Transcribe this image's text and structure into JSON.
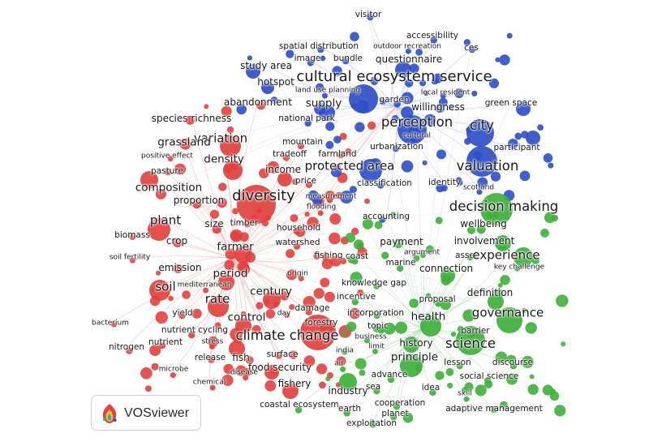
{
  "palette": {
    "red": "#e0413f",
    "blue": "#2e4fc7",
    "green": "#3faf3c",
    "link_red": "#f0a3a3",
    "link_blue": "#a9b5e6",
    "link_green": "#a6d8a2"
  },
  "logo": {
    "text": "VOSviewer",
    "icon": "vosviewer-logo-icon"
  },
  "clusters": [
    {
      "name": "red-cluster",
      "color": "#e0413f",
      "terms": [
        {
          "term": "abandonment",
          "weight": 8
        },
        {
          "term": "species richness",
          "weight": 8
        },
        {
          "term": "variation",
          "weight": 10
        },
        {
          "term": "grassland",
          "weight": 9
        },
        {
          "term": "density",
          "weight": 9
        },
        {
          "term": "mountain",
          "weight": 7
        },
        {
          "term": "tradeoff",
          "weight": 7
        },
        {
          "term": "farmland",
          "weight": 7
        },
        {
          "term": "positive effect",
          "weight": 6
        },
        {
          "term": "pasture",
          "weight": 7
        },
        {
          "term": "income",
          "weight": 8
        },
        {
          "term": "price",
          "weight": 7
        },
        {
          "term": "composition",
          "weight": 9
        },
        {
          "term": "diversity",
          "weight": 12
        },
        {
          "term": "proportion",
          "weight": 8
        },
        {
          "term": "measurement",
          "weight": 6
        },
        {
          "term": "flooding",
          "weight": 6
        },
        {
          "term": "plant",
          "weight": 10
        },
        {
          "term": "size",
          "weight": 8
        },
        {
          "term": "timber",
          "weight": 7
        },
        {
          "term": "household",
          "weight": 7
        },
        {
          "term": "biomass",
          "weight": 7
        },
        {
          "term": "crop",
          "weight": 8
        },
        {
          "term": "farmer",
          "weight": 9
        },
        {
          "term": "watershed",
          "weight": 7
        },
        {
          "term": "soil fertility",
          "weight": 6
        },
        {
          "term": "fishing",
          "weight": 7
        },
        {
          "term": "emission",
          "weight": 8
        },
        {
          "term": "period",
          "weight": 9
        },
        {
          "term": "origin",
          "weight": 6
        },
        {
          "term": "soil",
          "weight": 10
        },
        {
          "term": "mediterranean",
          "weight": 6
        },
        {
          "term": "century",
          "weight": 9
        },
        {
          "term": "rate",
          "weight": 10
        },
        {
          "term": "damage",
          "weight": 7
        },
        {
          "term": "day",
          "weight": 6
        },
        {
          "term": "yield",
          "weight": 7
        },
        {
          "term": "control",
          "weight": 9
        },
        {
          "term": "forestry",
          "weight": 7
        },
        {
          "term": "bacterium",
          "weight": 6
        },
        {
          "term": "nutrient cycling",
          "weight": 7
        },
        {
          "term": "climate change",
          "weight": 11
        },
        {
          "term": "nitrogen",
          "weight": 7
        },
        {
          "term": "nutrient",
          "weight": 7
        },
        {
          "term": "stress",
          "weight": 6
        },
        {
          "term": "release",
          "weight": 7
        },
        {
          "term": "fish",
          "weight": 8
        },
        {
          "term": "surface",
          "weight": 7
        },
        {
          "term": "food security",
          "weight": 8
        },
        {
          "term": "microbe",
          "weight": 6
        },
        {
          "term": "disease",
          "weight": 6
        },
        {
          "term": "fishery",
          "weight": 8
        },
        {
          "term": "chemical",
          "weight": 6
        }
      ]
    },
    {
      "name": "blue-cluster",
      "color": "#2e4fc7",
      "terms": [
        {
          "term": "visitor",
          "weight": 7
        },
        {
          "term": "accessibility",
          "weight": 7
        },
        {
          "term": "spatial distribution",
          "weight": 7
        },
        {
          "term": "outdoor recreation",
          "weight": 6
        },
        {
          "term": "ces",
          "weight": 7
        },
        {
          "term": "image",
          "weight": 7
        },
        {
          "term": "bundle",
          "weight": 7
        },
        {
          "term": "questionnaire",
          "weight": 8
        },
        {
          "term": "study area",
          "weight": 8
        },
        {
          "term": "cultural ecosystem service",
          "weight": 12
        },
        {
          "term": "hotspot",
          "weight": 8
        },
        {
          "term": "land use planning",
          "weight": 6
        },
        {
          "term": "local resident",
          "weight": 6
        },
        {
          "term": "garden",
          "weight": 7
        },
        {
          "term": "supply",
          "weight": 9
        },
        {
          "term": "willingness",
          "weight": 8
        },
        {
          "term": "green space",
          "weight": 7
        },
        {
          "term": "city",
          "weight": 11
        },
        {
          "term": "national park",
          "weight": 7
        },
        {
          "term": "perception",
          "weight": 11
        },
        {
          "term": "cultural",
          "weight": 6
        },
        {
          "term": "urbanization",
          "weight": 7
        },
        {
          "term": "participant",
          "weight": 7
        },
        {
          "term": "valuation",
          "weight": 11
        },
        {
          "term": "protected area",
          "weight": 10
        },
        {
          "term": "classification",
          "weight": 7
        },
        {
          "term": "identity",
          "weight": 7
        },
        {
          "term": "scotland",
          "weight": 6
        },
        {
          "term": "accounting",
          "weight": 7
        }
      ]
    },
    {
      "name": "green-cluster",
      "color": "#3faf3c",
      "terms": [
        {
          "term": "decision making",
          "weight": 11
        },
        {
          "term": "wellbeing",
          "weight": 8
        },
        {
          "term": "payment",
          "weight": 8
        },
        {
          "term": "involvement",
          "weight": 8
        },
        {
          "term": "argument",
          "weight": 6
        },
        {
          "term": "asset",
          "weight": 7
        },
        {
          "term": "experience",
          "weight": 10
        },
        {
          "term": "coast",
          "weight": 7
        },
        {
          "term": "marine",
          "weight": 7
        },
        {
          "term": "connection",
          "weight": 8
        },
        {
          "term": "key challenge",
          "weight": 6
        },
        {
          "term": "knowledge gap",
          "weight": 7
        },
        {
          "term": "definition",
          "weight": 8
        },
        {
          "term": "incentive",
          "weight": 7
        },
        {
          "term": "proposal",
          "weight": 7
        },
        {
          "term": "incorporation",
          "weight": 7
        },
        {
          "term": "governance",
          "weight": 10
        },
        {
          "term": "health",
          "weight": 9
        },
        {
          "term": "topic",
          "weight": 7
        },
        {
          "term": "barrier",
          "weight": 7
        },
        {
          "term": "business",
          "weight": 6
        },
        {
          "term": "limit",
          "weight": 6
        },
        {
          "term": "history",
          "weight": 8
        },
        {
          "term": "science",
          "weight": 11
        },
        {
          "term": "india",
          "weight": 6
        },
        {
          "term": "principle",
          "weight": 9
        },
        {
          "term": "air",
          "weight": 6
        },
        {
          "term": "lesson",
          "weight": 7
        },
        {
          "term": "discourse",
          "weight": 7
        },
        {
          "term": "advance",
          "weight": 7
        },
        {
          "term": "social science",
          "weight": 7
        },
        {
          "term": "industry",
          "weight": 8
        },
        {
          "term": "sea",
          "weight": 7
        },
        {
          "term": "idea",
          "weight": 7
        },
        {
          "term": "skill",
          "weight": 6
        },
        {
          "term": "cooperation",
          "weight": 7
        },
        {
          "term": "coastal ecosystem",
          "weight": 7
        },
        {
          "term": "earth",
          "weight": 7
        },
        {
          "term": "planet",
          "weight": 7
        },
        {
          "term": "adaptive management",
          "weight": 7
        },
        {
          "term": "exploitation",
          "weight": 7
        }
      ]
    }
  ]
}
